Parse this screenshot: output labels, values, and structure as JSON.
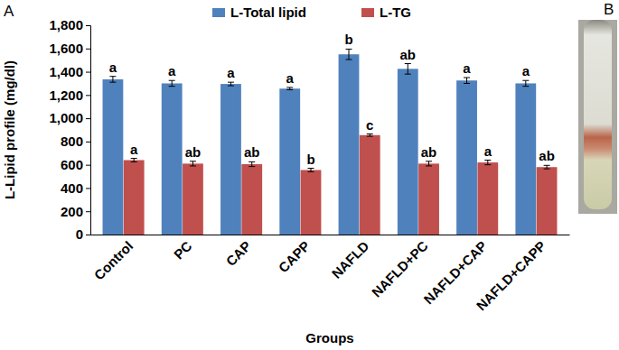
{
  "chart_data": {
    "type": "bar",
    "x_label": "Groups",
    "y_label": "L-Lipid profile (mg/dl)",
    "panel_labels": [
      "A",
      "B"
    ],
    "categories": [
      "Control",
      "PC",
      "CAP",
      "CAPP",
      "NAFLD",
      "NAFLD+PC",
      "NAFLD+CAP",
      "NAFLD+CAPP"
    ],
    "series": [
      {
        "name": "L-Total lipid",
        "color": "#4f81bd",
        "values": [
          1335,
          1300,
          1295,
          1255,
          1550,
          1425,
          1325,
          1300
        ],
        "errors": [
          25,
          25,
          15,
          10,
          45,
          45,
          25,
          25
        ],
        "letters": [
          "a",
          "a",
          "a",
          "a",
          "b",
          "ab",
          "a",
          "a"
        ]
      },
      {
        "name": "L-TG",
        "color": "#c0504d",
        "values": [
          640,
          610,
          605,
          555,
          855,
          610,
          620,
          580
        ],
        "errors": [
          15,
          20,
          20,
          15,
          10,
          20,
          20,
          15
        ],
        "letters": [
          "a",
          "ab",
          "ab",
          "b",
          "c",
          "ab",
          "a",
          "ab"
        ]
      }
    ],
    "ylim": [
      0,
      1800
    ],
    "yticks": [
      0,
      200,
      400,
      600,
      800,
      {
        "value": 1000,
        "label": "1,000"
      },
      {
        "value": 1200,
        "label": "1,200"
      },
      {
        "value": 1400,
        "label": "1,400"
      },
      {
        "value": 1600,
        "label": "1,600"
      },
      {
        "value": 1800,
        "label": "1,800"
      }
    ],
    "grid": false,
    "legend": "top"
  }
}
